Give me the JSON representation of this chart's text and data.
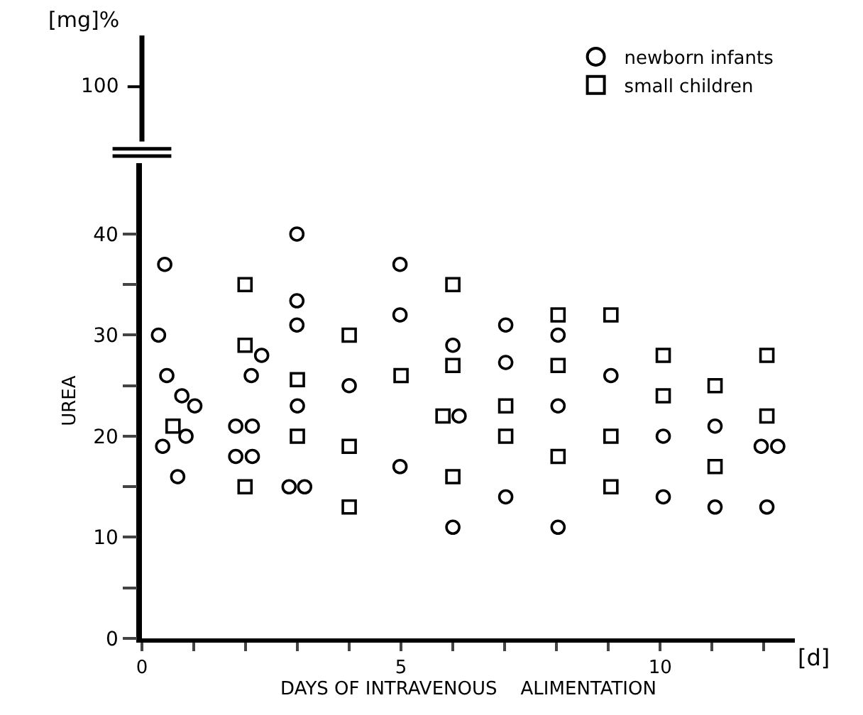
{
  "chart_data": {
    "type": "scatter",
    "xlabel": "DAYS OF INTRAVENOUS    ALIMENTATION",
    "ylabel": "UREA",
    "annotations": [
      "[mg]%",
      "100",
      "[d]"
    ],
    "xlim": [
      0,
      12.6
    ],
    "ylim": [
      0,
      47
    ],
    "xticks": [
      0,
      {
        "value": 1,
        "label": null
      },
      {
        "value": 2,
        "label": null
      },
      {
        "value": 3,
        "label": null
      },
      {
        "value": 4,
        "label": null
      },
      5,
      {
        "value": 6,
        "label": null
      },
      {
        "value": 7,
        "label": null
      },
      {
        "value": 8,
        "label": null
      },
      {
        "value": 9,
        "label": null
      },
      10,
      {
        "value": 11,
        "label": null
      },
      {
        "value": 12,
        "label": null
      }
    ],
    "yticks": [
      0,
      {
        "value": 5,
        "label": null
      },
      10,
      {
        "value": 15,
        "label": null
      },
      20,
      {
        "value": 25,
        "label": null
      },
      30,
      {
        "value": 35,
        "label": null
      },
      40
    ],
    "legend": "top right",
    "series": [
      {
        "name": "newborn infants",
        "color": "#000000",
        "marker": "circle",
        "x": [
          0.44,
          0.32,
          0.48,
          0.77,
          1.02,
          0.85,
          0.4,
          0.69,
          1.81,
          2.13,
          1.81,
          2.13,
          2.31,
          2.11,
          2.99,
          2.99,
          2.99,
          3.0,
          2.84,
          3.14,
          4.0,
          4.98,
          4.98,
          4.98,
          6.0,
          6.12,
          6.0,
          7.02,
          7.02,
          7.02,
          8.03,
          8.03,
          8.03,
          9.05,
          10.06,
          10.06,
          11.06,
          11.06,
          11.95,
          12.27,
          12.06
        ],
        "values": [
          37,
          30,
          26,
          24,
          23,
          20,
          19,
          16,
          21,
          21,
          18,
          18,
          28,
          26,
          40,
          33.4,
          31,
          23,
          15,
          15,
          25,
          37,
          32,
          17,
          29,
          22,
          11,
          31,
          27.3,
          14,
          30,
          23,
          11,
          26,
          20,
          14,
          21,
          13,
          19,
          19,
          13
        ]
      },
      {
        "name": "small children",
        "color": "#000000",
        "marker": "square",
        "x": [
          0.6,
          1.99,
          1.99,
          1.99,
          3.0,
          3.0,
          4.0,
          4.0,
          4.0,
          5.0,
          6.0,
          6.0,
          5.81,
          6.0,
          7.02,
          7.02,
          8.03,
          8.03,
          8.03,
          9.05,
          9.05,
          9.05,
          10.06,
          10.06,
          11.06,
          11.06,
          12.06,
          12.06
        ],
        "values": [
          21,
          35,
          29,
          15,
          25.6,
          20,
          30,
          19,
          13,
          26,
          35,
          27,
          22,
          16,
          23,
          20,
          32,
          27,
          18,
          32,
          20,
          15,
          28,
          24,
          25,
          17,
          28,
          22
        ]
      }
    ]
  }
}
